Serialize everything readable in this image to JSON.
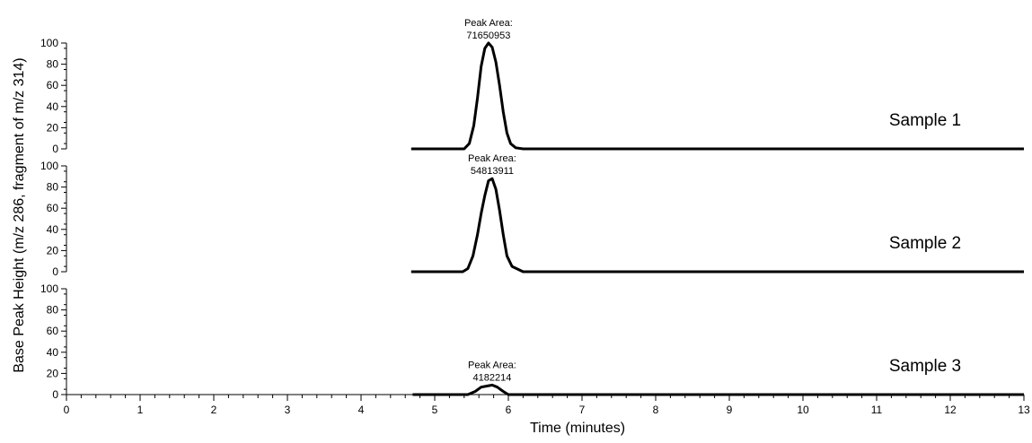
{
  "chart_data": {
    "type": "line",
    "ylabel": "Base Peak Height (m/z 286, fragment of m/z 314)",
    "xlabel": "Time (minutes)",
    "xlim": [
      0,
      13
    ],
    "x_ticks": [
      "0",
      "1",
      "2",
      "3",
      "4",
      "5",
      "6",
      "7",
      "8",
      "9",
      "10",
      "11",
      "12",
      "13"
    ],
    "ylim": [
      0,
      100
    ],
    "y_ticks": [
      "0",
      "20",
      "40",
      "60",
      "80",
      "100"
    ],
    "grid": false,
    "panels": [
      {
        "name": "Sample 1",
        "annotation_title": "Peak Area:",
        "annotation_value": "71650953",
        "x": [
          4.68,
          5.4,
          5.47,
          5.53,
          5.58,
          5.63,
          5.68,
          5.73,
          5.78,
          5.83,
          5.88,
          5.93,
          5.98,
          6.03,
          6.1,
          6.2,
          13.0
        ],
        "y": [
          0,
          0,
          5,
          22,
          48,
          78,
          95,
          100,
          96,
          82,
          60,
          35,
          15,
          5,
          1,
          0,
          0
        ]
      },
      {
        "name": "Sample 2",
        "annotation_title": "Peak Area:",
        "annotation_value": "54813911",
        "x": [
          4.68,
          5.38,
          5.45,
          5.52,
          5.58,
          5.63,
          5.68,
          5.73,
          5.78,
          5.83,
          5.88,
          5.93,
          5.98,
          6.05,
          6.2,
          13.0
        ],
        "y": [
          0,
          0,
          3,
          15,
          35,
          55,
          72,
          86,
          88,
          78,
          58,
          35,
          15,
          5,
          0,
          0
        ]
      },
      {
        "name": "Sample 3",
        "annotation_title": "Peak Area:",
        "annotation_value": "4182214",
        "x": [
          4.7,
          5.45,
          5.55,
          5.63,
          5.7,
          5.78,
          5.85,
          5.93,
          6.0,
          13.0
        ],
        "y": [
          0,
          0,
          3,
          7,
          8,
          9,
          7,
          3,
          0,
          0
        ]
      }
    ]
  }
}
